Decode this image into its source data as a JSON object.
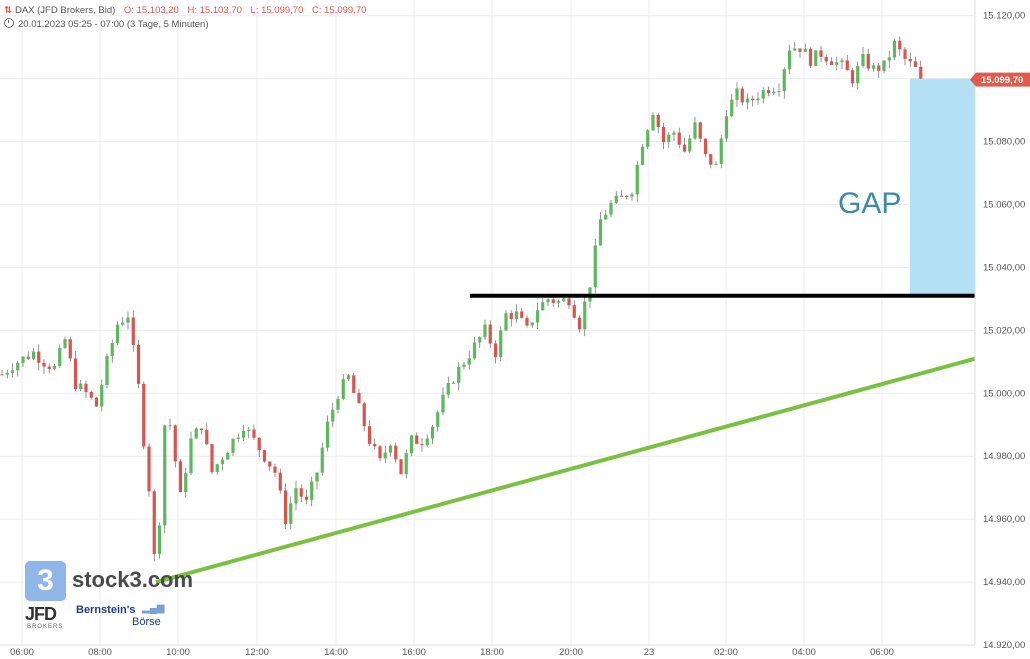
{
  "header": {
    "symbol_icon": "chart-icon",
    "instrument": "DAX (JFD Brokers, Bid)",
    "open": "O: 15.103,20",
    "high": "H: 15.103,70",
    "low": "L: 15.099,70",
    "close": "C: 15.099,70",
    "range": "20.01.2023 05:25 - 07:00",
    "period": "(3 Tage, 5 Minuten)"
  },
  "branding": {
    "logo_glyph": "3",
    "logo_text": "stock3.com",
    "broker": "JFD",
    "broker_sub": "BROKERS",
    "partner": "Bernstein's",
    "partner_sub": "Börse"
  },
  "annotations": {
    "gap_label": "GAP",
    "gap_color": "#b3e0f2",
    "gap_label_color": "#3a8aa8",
    "resistance_color": "#000000",
    "trendline_color": "#7ac143"
  },
  "chart_data": {
    "type": "candlestick",
    "title": "",
    "xlabel": "",
    "ylabel": "",
    "x_ticks": [
      "06:00",
      "08:00",
      "10:00",
      "12:00",
      "14:00",
      "16:00",
      "18:00",
      "20:00",
      "23",
      "02:00",
      "04:00",
      "06:00"
    ],
    "y_ticks": [
      "15.120,00",
      "15.100,00",
      "15.080,00",
      "15.060,00",
      "15.040,00",
      "15.020,00",
      "15.000,00",
      "14.980,00",
      "14.960,00",
      "14.940,00",
      "14.920,00"
    ],
    "ylim": [
      14920,
      15125
    ],
    "last_price": "15.099,70",
    "last_price_color": "#e05a4f",
    "up_color": "#5cb85c",
    "down_color": "#d9534f",
    "grid": true,
    "price_path": [
      [
        0,
        15006
      ],
      [
        2,
        15009
      ],
      [
        4,
        15011
      ],
      [
        6,
        15013
      ],
      [
        8,
        15010
      ],
      [
        10,
        15008
      ],
      [
        12,
        15017
      ],
      [
        14,
        15003
      ],
      [
        16,
        15000
      ],
      [
        18,
        14996
      ],
      [
        20,
        15010
      ],
      [
        22,
        15022
      ],
      [
        24,
        15025
      ],
      [
        26,
        15002
      ],
      [
        27,
        14985
      ],
      [
        28,
        14970
      ],
      [
        29,
        14948
      ],
      [
        30,
        14960
      ],
      [
        31,
        14990
      ],
      [
        32,
        14990
      ],
      [
        34,
        14967
      ],
      [
        36,
        14985
      ],
      [
        38,
        14990
      ],
      [
        40,
        14975
      ],
      [
        42,
        14980
      ],
      [
        44,
        14985
      ],
      [
        46,
        14990
      ],
      [
        48,
        14985
      ],
      [
        50,
        14980
      ],
      [
        52,
        14975
      ],
      [
        54,
        14960
      ],
      [
        56,
        14970
      ],
      [
        58,
        14965
      ],
      [
        60,
        14975
      ],
      [
        62,
        14990
      ],
      [
        64,
        15000
      ],
      [
        66,
        15005
      ],
      [
        68,
        14995
      ],
      [
        70,
        14985
      ],
      [
        72,
        14978
      ],
      [
        74,
        14985
      ],
      [
        76,
        14975
      ],
      [
        78,
        14985
      ],
      [
        80,
        14985
      ],
      [
        82,
        14990
      ],
      [
        84,
        14998
      ],
      [
        86,
        15005
      ],
      [
        88,
        15010
      ],
      [
        90,
        15015
      ],
      [
        92,
        15020
      ],
      [
        94,
        15013
      ],
      [
        96,
        15025
      ],
      [
        98,
        15025
      ],
      [
        100,
        15020
      ],
      [
        102,
        15027
      ],
      [
        104,
        15030
      ],
      [
        106,
        15029
      ],
      [
        108,
        15030
      ],
      [
        110,
        15022
      ],
      [
        112,
        15035
      ],
      [
        114,
        15055
      ],
      [
        116,
        15060
      ],
      [
        118,
        15062
      ],
      [
        120,
        15065
      ],
      [
        122,
        15080
      ],
      [
        124,
        15090
      ],
      [
        125,
        15085
      ],
      [
        126,
        15080
      ],
      [
        128,
        15083
      ],
      [
        130,
        15077
      ],
      [
        132,
        15085
      ],
      [
        134,
        15075
      ],
      [
        136,
        15072
      ],
      [
        138,
        15090
      ],
      [
        140,
        15095
      ],
      [
        142,
        15092
      ],
      [
        144,
        15095
      ],
      [
        146,
        15097
      ],
      [
        148,
        15098
      ],
      [
        150,
        15110
      ],
      [
        152,
        15110
      ],
      [
        154,
        15106
      ],
      [
        156,
        15108
      ],
      [
        158,
        15106
      ],
      [
        160,
        15104
      ],
      [
        162,
        15100
      ],
      [
        164,
        15106
      ],
      [
        166,
        15103
      ],
      [
        168,
        15104
      ],
      [
        170,
        15111
      ],
      [
        172,
        15106
      ],
      [
        174,
        15103
      ],
      [
        175,
        15099.7
      ]
    ],
    "gap_zone": {
      "y_from": 15031,
      "y_to": 15100
    },
    "resistance_line": {
      "y": 15031
    },
    "trendline": {
      "from": {
        "price": 14940
      },
      "to": {
        "price": 15011
      }
    }
  }
}
